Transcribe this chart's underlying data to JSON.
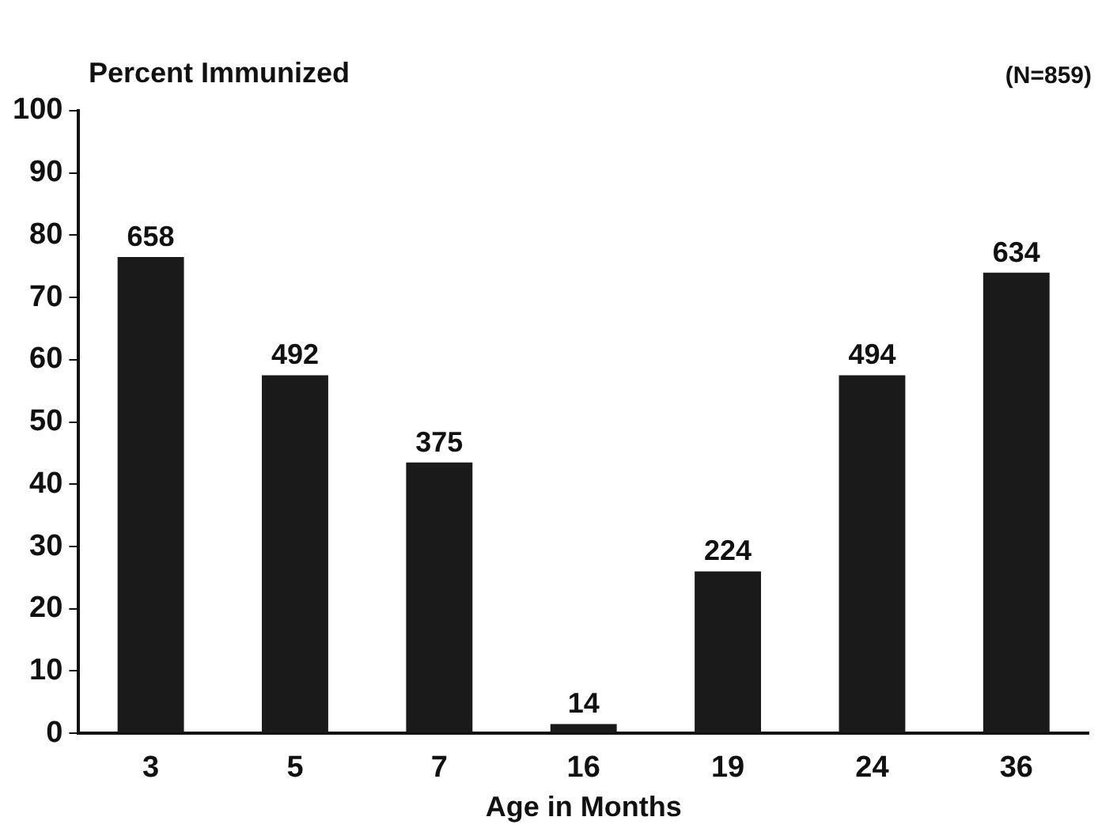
{
  "chart_data": {
    "type": "bar",
    "ylabel": "Percent Immunized",
    "xlabel": "Age in Months",
    "annotations": [
      "(N=859)",
      {
        "text": "658",
        "x": "3",
        "y": 76.5
      },
      {
        "text": "492",
        "x": "5",
        "y": 57.5
      },
      {
        "text": "375",
        "x": "7",
        "y": 43.5
      },
      {
        "text": "14",
        "x": "16",
        "y": 1.5
      },
      {
        "text": "224",
        "x": "19",
        "y": 26
      },
      {
        "text": "494",
        "x": "24",
        "y": 57.5
      },
      {
        "text": "634",
        "x": "36",
        "y": 74
      }
    ],
    "categories": [
      "3",
      "5",
      "7",
      "16",
      "19",
      "24",
      "36"
    ],
    "values": [
      76.5,
      57.5,
      43.5,
      1.5,
      26,
      57.5,
      74
    ],
    "color": "#1a1a1a",
    "ylim": [
      0,
      100
    ],
    "yticks": [
      0,
      10,
      20,
      30,
      40,
      50,
      60,
      70,
      80,
      90,
      100
    ],
    "grid": false,
    "legend": false
  }
}
